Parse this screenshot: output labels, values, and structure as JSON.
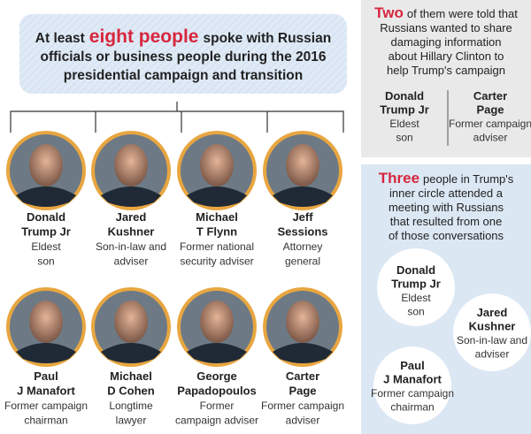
{
  "main": {
    "lead": "At least",
    "highlight": "eight people",
    "lines": [
      "spoke with Russian",
      "officials or business people during the 2016",
      "presidential campaign and transition"
    ]
  },
  "people": [
    {
      "name": [
        "Donald",
        "Trump Jr"
      ],
      "role": [
        "Eldest",
        "son"
      ]
    },
    {
      "name": [
        "Jared",
        "Kushner"
      ],
      "role": [
        "Son-in-law and",
        "adviser"
      ]
    },
    {
      "name": [
        "Michael",
        "T Flynn"
      ],
      "role": [
        "Former national",
        "security adviser"
      ]
    },
    {
      "name": [
        "Jeff",
        "Sessions"
      ],
      "role": [
        "Attorney",
        "general"
      ]
    },
    {
      "name": [
        "Paul",
        "J Manafort"
      ],
      "role": [
        "Former campaign",
        "chairman"
      ]
    },
    {
      "name": [
        "Michael",
        "D Cohen"
      ],
      "role": [
        "Longtime",
        "lawyer"
      ]
    },
    {
      "name": [
        "George",
        "Papadopoulos"
      ],
      "role": [
        "Former",
        "campaign adviser"
      ]
    },
    {
      "name": [
        "Carter",
        "Page"
      ],
      "role": [
        "Former campaign",
        "adviser"
      ]
    }
  ],
  "two_box": {
    "highlight": "Two",
    "lines": [
      "of them were told that",
      "Russians wanted to share",
      "damaging information",
      "about Hillary Clinton to",
      "help Trump's campaign"
    ],
    "people": [
      {
        "name": [
          "Donald",
          "Trump Jr"
        ],
        "role": [
          "Eldest",
          "son"
        ]
      },
      {
        "name": [
          "Carter",
          "Page"
        ],
        "role": [
          "Former campaign",
          "adviser"
        ]
      }
    ]
  },
  "three_box": {
    "highlight": "Three",
    "lines": [
      "people in Trump's",
      "inner circle attended a",
      "meeting with Russians",
      "that resulted from one",
      "of those conversations"
    ],
    "people": [
      {
        "name": [
          "Donald",
          "Trump Jr"
        ],
        "role": [
          "Eldest",
          "son"
        ]
      },
      {
        "name": [
          "Jared",
          "Kushner"
        ],
        "role": [
          "Son-in-law and",
          "adviser"
        ]
      },
      {
        "name": [
          "Paul",
          "J Manafort"
        ],
        "role": [
          "Former campaign",
          "chairman"
        ]
      }
    ]
  }
}
